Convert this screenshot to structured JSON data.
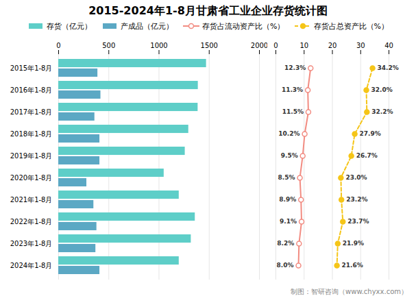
{
  "chart_data": {
    "type": "bar",
    "orientation": "horizontal",
    "title": "2015-2024年1-8月甘肃省工业企业存货统计图",
    "categories": [
      "2015年1-8月",
      "2016年1-8月",
      "2017年1-8月",
      "2018年1-8月",
      "2019年1-8月",
      "2020年1-8月",
      "2021年1-8月",
      "2022年1-8月",
      "2023年1-8月",
      "2024年1-8月"
    ],
    "series": [
      {
        "name": "存货（亿元）",
        "color": "#5ECEC8",
        "values": [
          1472,
          1390,
          1388,
          1295,
          1260,
          1050,
          1200,
          1360,
          1320,
          1200
        ]
      },
      {
        "name": "产成品（亿元）",
        "color": "#5BA8C4",
        "values": [
          390,
          420,
          360,
          410,
          410,
          280,
          350,
          380,
          370,
          410
        ]
      },
      {
        "name": "存货占流动资产比（%）",
        "type": "line",
        "axis": "x2",
        "color": "#F28C82",
        "marker": "circle",
        "line_style": "solid",
        "data_labels": true,
        "values": [
          12.3,
          11.3,
          11.5,
          10.2,
          9.5,
          8.5,
          8.9,
          9.1,
          8.2,
          8.0
        ],
        "value_labels": [
          "12.3%",
          "11.3%",
          "11.5%",
          "10.2%",
          "9.5%",
          "8.5%",
          "8.9%",
          "9.1%",
          "8.2%",
          "8.0%"
        ]
      },
      {
        "name": "存货占总资产比（%）",
        "type": "line",
        "axis": "x2",
        "color": "#F5C518",
        "marker": "circle",
        "line_style": "dashed",
        "data_labels": true,
        "values": [
          34.2,
          32.0,
          32.2,
          27.9,
          26.7,
          23.0,
          23.2,
          23.7,
          21.9,
          21.6
        ],
        "value_labels": [
          "34.2%",
          "32.0%",
          "32.2%",
          "27.9%",
          "26.7%",
          "23.0%",
          "23.2%",
          "23.7%",
          "21.9%",
          "21.6%"
        ]
      }
    ],
    "xlim": [
      0,
      2000
    ],
    "xticks": [
      0,
      500,
      1000,
      1500,
      2000
    ],
    "x2lim": [
      0,
      40
    ],
    "x2ticks": [
      0,
      10,
      20,
      30,
      40
    ],
    "grid": true,
    "legend": "top",
    "caption": "制图：智研咨询（www.chyxx.com）"
  }
}
